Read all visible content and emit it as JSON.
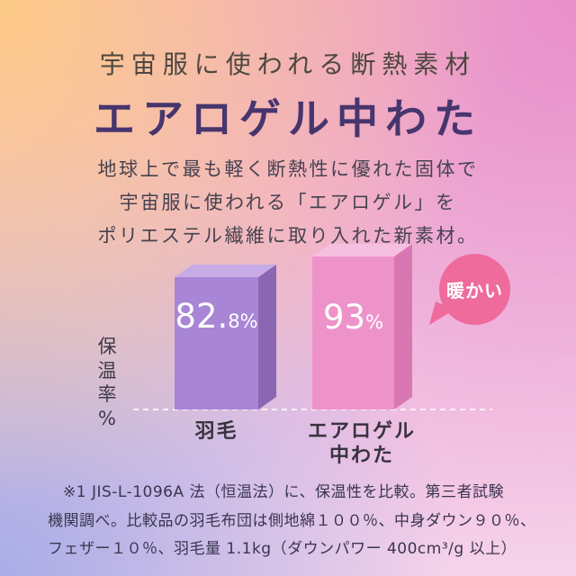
{
  "header": {
    "subtitle": "宇宙服に使われる断熱素材",
    "title": "エアロゲル中わた"
  },
  "description": {
    "text": "地球上で最も軽く断熱性に優れた固体で\n宇宙服に使われる「エアロゲル」を\nポリエステル繊維に取り入れた新素材。"
  },
  "chart": {
    "y_axis_label": "保\n温\n率\n%",
    "bars": [
      {
        "value_main": "82.",
        "value_sub": "8%",
        "label": "羽毛"
      },
      {
        "value_main": "93",
        "value_sub": "%",
        "label": "エアロゲル\n中わた"
      }
    ],
    "callout": "暖かい"
  },
  "footnote": {
    "line1": "※1 JIS-L-1096A 法（恒温法）に、保温性を比較。第三者試験",
    "line2": "機関調べ。比較品の羽毛布団は側地綿１００％、中身ダウン９０％、",
    "line3": "フェザー１０％、羽毛量 1.1kg（ダウンパワー 400cm³/g 以上）"
  },
  "colors": {
    "title": "#47356e",
    "bar_down_front": "#a985d6",
    "bar_aerogel_front": "#ee93ca",
    "callout_bubble": "#ee6b9b",
    "bg_top_left": "#fdca85",
    "bg_top_right": "#e98fc9",
    "bg_bottom_left": "#a8ade7",
    "bg_bottom_right": "#f6d5eb"
  },
  "chart_data": {
    "type": "bar",
    "title": "保温率の比較（エアロゲル中わた vs 羽毛）",
    "categories": [
      "羽毛",
      "エアロゲル中わた"
    ],
    "values": [
      82.8,
      93
    ],
    "unit": "%",
    "ylabel": "保温率%",
    "xlabel": "",
    "ylim": [
      0,
      100
    ],
    "grid": false,
    "legend": false,
    "annotations": [
      "暖かい"
    ],
    "footnote": "※1 JIS-L-1096A 法（恒温法）に、保温性を比較。第三者試験機関調べ。比較品の羽毛布団は側地綿１００％、中身ダウン９０％、フェザー１０％、羽毛量 1.1kg（ダウンパワー 400cm³/g 以上）"
  }
}
